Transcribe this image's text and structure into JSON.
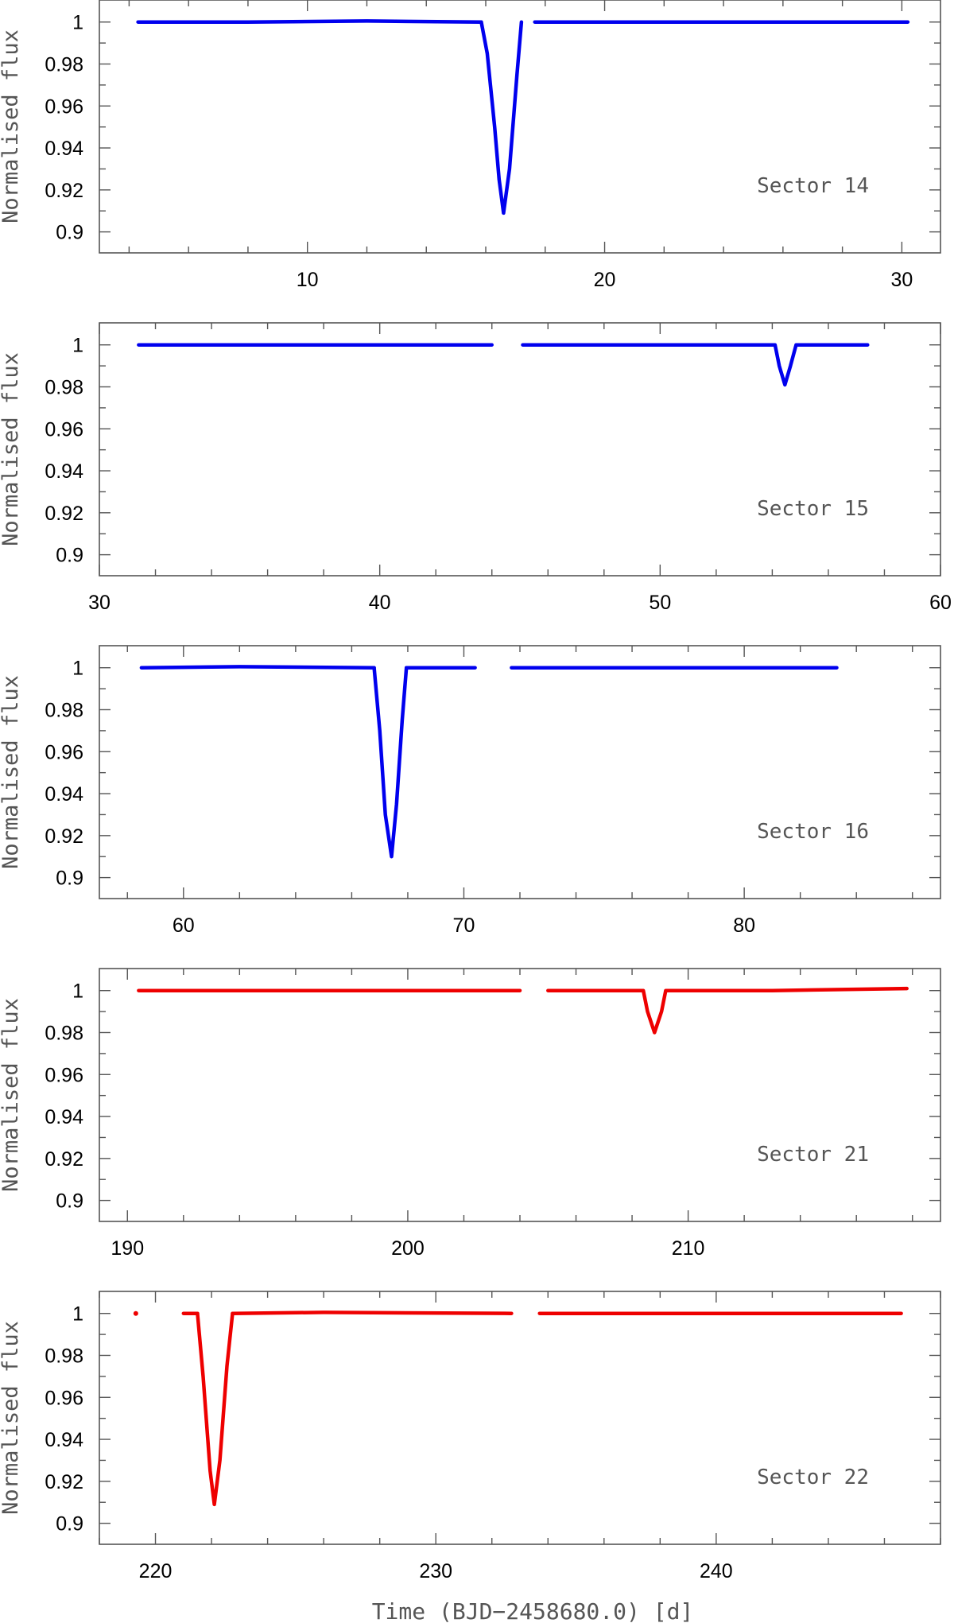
{
  "chart_data": [
    {
      "type": "line",
      "panel_label": "Sector 14",
      "ylabel": "Normalised flux",
      "xlim": [
        3,
        31.3
      ],
      "ylim": [
        0.89,
        1.0105
      ],
      "xticks_major": [
        10,
        20,
        30
      ],
      "yticks_major": [
        0.9,
        0.92,
        0.94,
        0.96,
        0.98,
        1
      ],
      "ytick_labels": [
        "0.9",
        "0.92",
        "0.94",
        "0.96",
        "0.98",
        "1"
      ],
      "color": "#0000ee",
      "series": [
        {
          "x": [
            4.3,
            8,
            12,
            15.85
          ],
          "y": [
            1.0,
            1.0,
            1.0005,
            1.0
          ]
        },
        {
          "x": [
            15.85,
            16.05,
            16.3,
            16.45,
            16.6,
            16.8,
            17.05,
            17.2
          ],
          "y": [
            1.0,
            0.985,
            0.95,
            0.925,
            0.909,
            0.93,
            0.975,
            1.0
          ]
        },
        {
          "x": [
            17.65,
            22,
            26,
            30.2
          ],
          "y": [
            1.0,
            1.0,
            1.0,
            1.0
          ]
        }
      ]
    },
    {
      "type": "line",
      "panel_label": "Sector 15",
      "ylabel": "Normalised flux",
      "xlim": [
        30,
        60
      ],
      "ylim": [
        0.89,
        1.0105
      ],
      "xticks_major": [
        30,
        40,
        50,
        60
      ],
      "yticks_major": [
        0.9,
        0.92,
        0.94,
        0.96,
        0.98,
        1
      ],
      "ytick_labels": [
        "0.9",
        "0.92",
        "0.94",
        "0.96",
        "0.98",
        "1"
      ],
      "color": "#0000ee",
      "series": [
        {
          "x": [
            31.4,
            44
          ],
          "y": [
            1.0,
            1.0
          ]
        },
        {
          "x": [
            45.1,
            54.1,
            54.25,
            54.45,
            54.65,
            54.85,
            57.4
          ],
          "y": [
            1.0,
            1.0,
            0.99,
            0.981,
            0.99,
            1.0,
            1.0
          ]
        }
      ]
    },
    {
      "type": "line",
      "panel_label": "Sector 16",
      "ylabel": "Normalised flux",
      "xlim": [
        57,
        87
      ],
      "ylim": [
        0.89,
        1.0105
      ],
      "xticks_major": [
        60,
        70,
        80
      ],
      "yticks_major": [
        0.9,
        0.92,
        0.94,
        0.96,
        0.98,
        1
      ],
      "ytick_labels": [
        "0.9",
        "0.92",
        "0.94",
        "0.96",
        "0.98",
        "1"
      ],
      "color": "#0000ee",
      "series": [
        {
          "x": [
            58.5,
            62,
            66.8
          ],
          "y": [
            1.0,
            1.0005,
            1.0
          ]
        },
        {
          "x": [
            66.8,
            67.0,
            67.2,
            67.42,
            67.6,
            67.8,
            67.95
          ],
          "y": [
            1.0,
            0.97,
            0.93,
            0.91,
            0.935,
            0.975,
            1.0
          ]
        },
        {
          "x": [
            67.95,
            70.4
          ],
          "y": [
            1.0,
            1.0
          ]
        },
        {
          "x": [
            71.7,
            83.3
          ],
          "y": [
            1.0,
            1.0
          ]
        }
      ]
    },
    {
      "type": "line",
      "panel_label": "Sector 21",
      "ylabel": "Normalised flux",
      "xlim": [
        189,
        219
      ],
      "ylim": [
        0.89,
        1.0105
      ],
      "xticks_major": [
        190,
        200,
        210
      ],
      "yticks_major": [
        0.9,
        0.92,
        0.94,
        0.96,
        0.98,
        1
      ],
      "ytick_labels": [
        "0.9",
        "0.92",
        "0.94",
        "0.96",
        "0.98",
        "1"
      ],
      "color": "#ee0000",
      "series": [
        {
          "x": [
            190.4,
            204
          ],
          "y": [
            1.0,
            1.0
          ]
        },
        {
          "x": [
            205,
            208.4,
            208.55,
            208.8,
            209.05,
            209.2,
            213,
            217.8
          ],
          "y": [
            1.0,
            1.0,
            0.99,
            0.98,
            0.99,
            1.0,
            1.0,
            1.001
          ]
        }
      ]
    },
    {
      "type": "line",
      "panel_label": "Sector 22",
      "ylabel": "Normalised flux",
      "xlim": [
        218,
        248
      ],
      "ylim": [
        0.89,
        1.0105
      ],
      "xticks_major": [
        220,
        230,
        240
      ],
      "yticks_major": [
        0.9,
        0.92,
        0.94,
        0.96,
        0.98,
        1
      ],
      "ytick_labels": [
        "0.9",
        "0.92",
        "0.94",
        "0.96",
        "0.98",
        "1"
      ],
      "xlabel": "Time (BJD−2458680.0) [d]",
      "color": "#ee0000",
      "series": [
        {
          "x": [
            219.3,
            219.34
          ],
          "y": [
            1.0,
            1.0
          ]
        },
        {
          "x": [
            221.0,
            221.5
          ],
          "y": [
            1.0,
            1.0
          ]
        },
        {
          "x": [
            221.5,
            221.7,
            221.95,
            222.1,
            222.3,
            222.55,
            222.75
          ],
          "y": [
            1.0,
            0.97,
            0.925,
            0.909,
            0.93,
            0.975,
            1.0
          ]
        },
        {
          "x": [
            222.75,
            226,
            232.7
          ],
          "y": [
            1.0,
            1.0005,
            1.0
          ]
        },
        {
          "x": [
            233.7,
            240,
            246.6
          ],
          "y": [
            1.0,
            1.0,
            1.0
          ]
        }
      ]
    }
  ]
}
